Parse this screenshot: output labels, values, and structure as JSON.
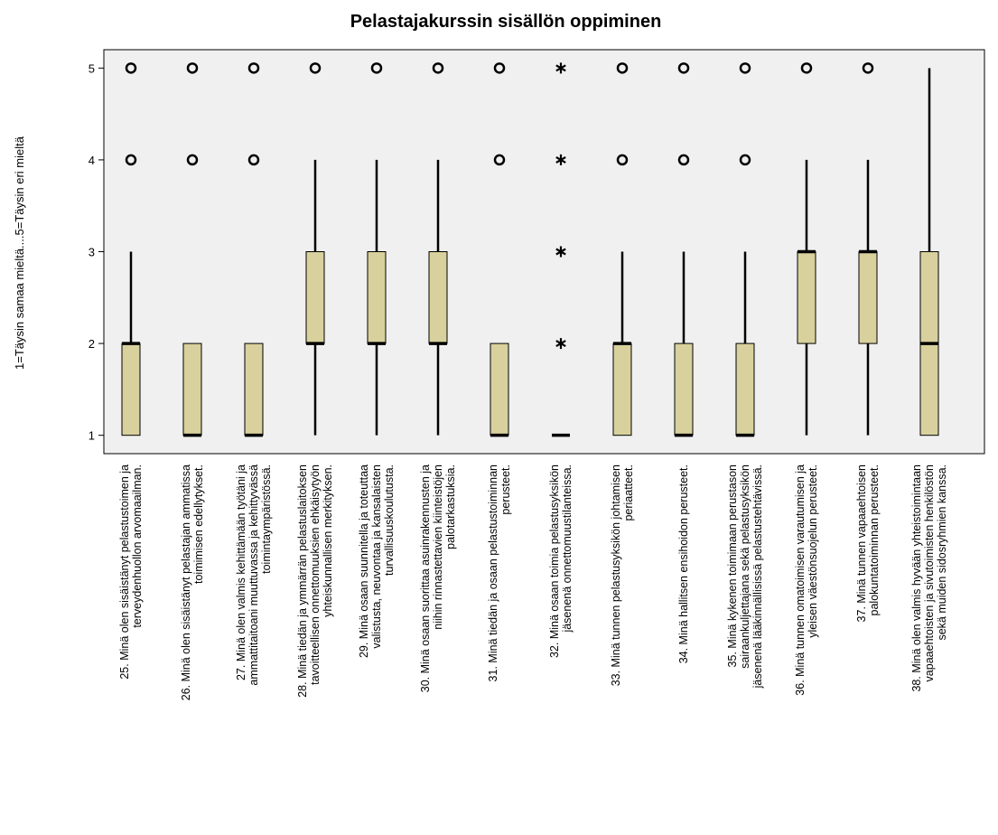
{
  "chart_data": {
    "type": "boxplot",
    "title": "Pelastajakurssin sisällön oppiminen",
    "y_label": "1=Täysin samaa mieltä....5=Täysin eri mieltä",
    "ylim": [
      0.8,
      5.2
    ],
    "yticks": [
      1,
      2,
      3,
      4,
      5
    ],
    "box_color": "#d8d19d",
    "categories": [
      [
        "25. Minä olen sisäistänyt pelastustoimen ja",
        "terveydenhuollon arvomaailman."
      ],
      [
        "26. Minä olen sisäistänyt pelastajan ammatissa",
        "toimimisen edellytykset."
      ],
      [
        "27. Minä olen valmis kehittämään työtäni ja",
        "ammattitaitoani muuttuvassa ja kehittyvässä",
        "toimintaympäristössä."
      ],
      [
        "28. Minä tiedän ja ymmärrän pelastuslaitoksen",
        "tavoitteellisen onnettomuuksien ehkäisytyön",
        "yhteiskunnallisen merkityksen."
      ],
      [
        "29. Minä osaan suunnitella ja toteuttaa",
        "valistusta, neuvontaa ja kansalaisten",
        "turvallisuuskoulutusta."
      ],
      [
        "30. Minä osaan suorittaa asuinrakennusten ja",
        "niihin rinnastettavien kiinteistöjen",
        "palotarkastuksia."
      ],
      [
        "31. Minä tiedän ja osaan pelastustoiminnan",
        "perusteet."
      ],
      [
        "32. Minä osaan toimia pelastusyksikön",
        "jäsenenä onnettomuustilanteissa."
      ],
      [
        "33. Minä tunnen pelastusyksikön johtamisen",
        "periaatteet."
      ],
      [
        "34. Minä hallitsen ensihoidon perusteet."
      ],
      [
        "35. Minä kykenen toimimaan perustason",
        "sairaankuljettajana sekä pelastusyksikön",
        "jäsenenä lääkinnällisissä pelastustehtävissä."
      ],
      [
        "36. Minä tunnen omatoimisen varautumisen ja",
        "yleisen väestönsuojelun perusteet."
      ],
      [
        "37. Minä tunnen vapaaehtoisen",
        "palokuntatoiminnan perusteet."
      ],
      [
        "38. Minä olen valmis hyvään yhteistoimintaan",
        "vapaaehtoisten ja sivutoimisten henkilöstön",
        "sekä muiden sidosryhmien kanssa."
      ]
    ],
    "boxes": [
      {
        "min": 1,
        "q1": 1,
        "median": 2,
        "q3": 2,
        "max": 3,
        "outliers": [
          4,
          5
        ],
        "extremes": []
      },
      {
        "min": 1,
        "q1": 1,
        "median": 1,
        "q3": 2,
        "max": 2,
        "outliers": [
          4,
          5
        ],
        "extremes": []
      },
      {
        "min": 1,
        "q1": 1,
        "median": 1,
        "q3": 2,
        "max": 2,
        "outliers": [
          4,
          5
        ],
        "extremes": []
      },
      {
        "min": 1,
        "q1": 2,
        "median": 2,
        "q3": 3,
        "max": 4,
        "outliers": [
          5
        ],
        "extremes": []
      },
      {
        "min": 1,
        "q1": 2,
        "median": 2,
        "q3": 3,
        "max": 4,
        "outliers": [
          5
        ],
        "extremes": []
      },
      {
        "min": 1,
        "q1": 2,
        "median": 2,
        "q3": 3,
        "max": 4,
        "outliers": [
          5
        ],
        "extremes": []
      },
      {
        "min": 1,
        "q1": 1,
        "median": 1,
        "q3": 2,
        "max": 2,
        "outliers": [
          4,
          5
        ],
        "extremes": []
      },
      {
        "min": 1,
        "q1": 1,
        "median": 1,
        "q3": 1,
        "max": 1,
        "outliers": [],
        "extremes": [
          2,
          3,
          4,
          5
        ]
      },
      {
        "min": 1,
        "q1": 1,
        "median": 2,
        "q3": 2,
        "max": 3,
        "outliers": [
          4,
          5
        ],
        "extremes": []
      },
      {
        "min": 1,
        "q1": 1,
        "median": 1,
        "q3": 2,
        "max": 3,
        "outliers": [
          4,
          5
        ],
        "extremes": []
      },
      {
        "min": 1,
        "q1": 1,
        "median": 1,
        "q3": 2,
        "max": 3,
        "outliers": [
          4,
          5
        ],
        "extremes": []
      },
      {
        "min": 1,
        "q1": 2,
        "median": 3,
        "q3": 3,
        "max": 4,
        "outliers": [
          5
        ],
        "extremes": []
      },
      {
        "min": 1,
        "q1": 2,
        "median": 3,
        "q3": 3,
        "max": 4,
        "outliers": [
          5
        ],
        "extremes": []
      },
      {
        "min": 1,
        "q1": 1,
        "median": 2,
        "q3": 3,
        "max": 5,
        "outliers": [],
        "extremes": []
      }
    ]
  }
}
